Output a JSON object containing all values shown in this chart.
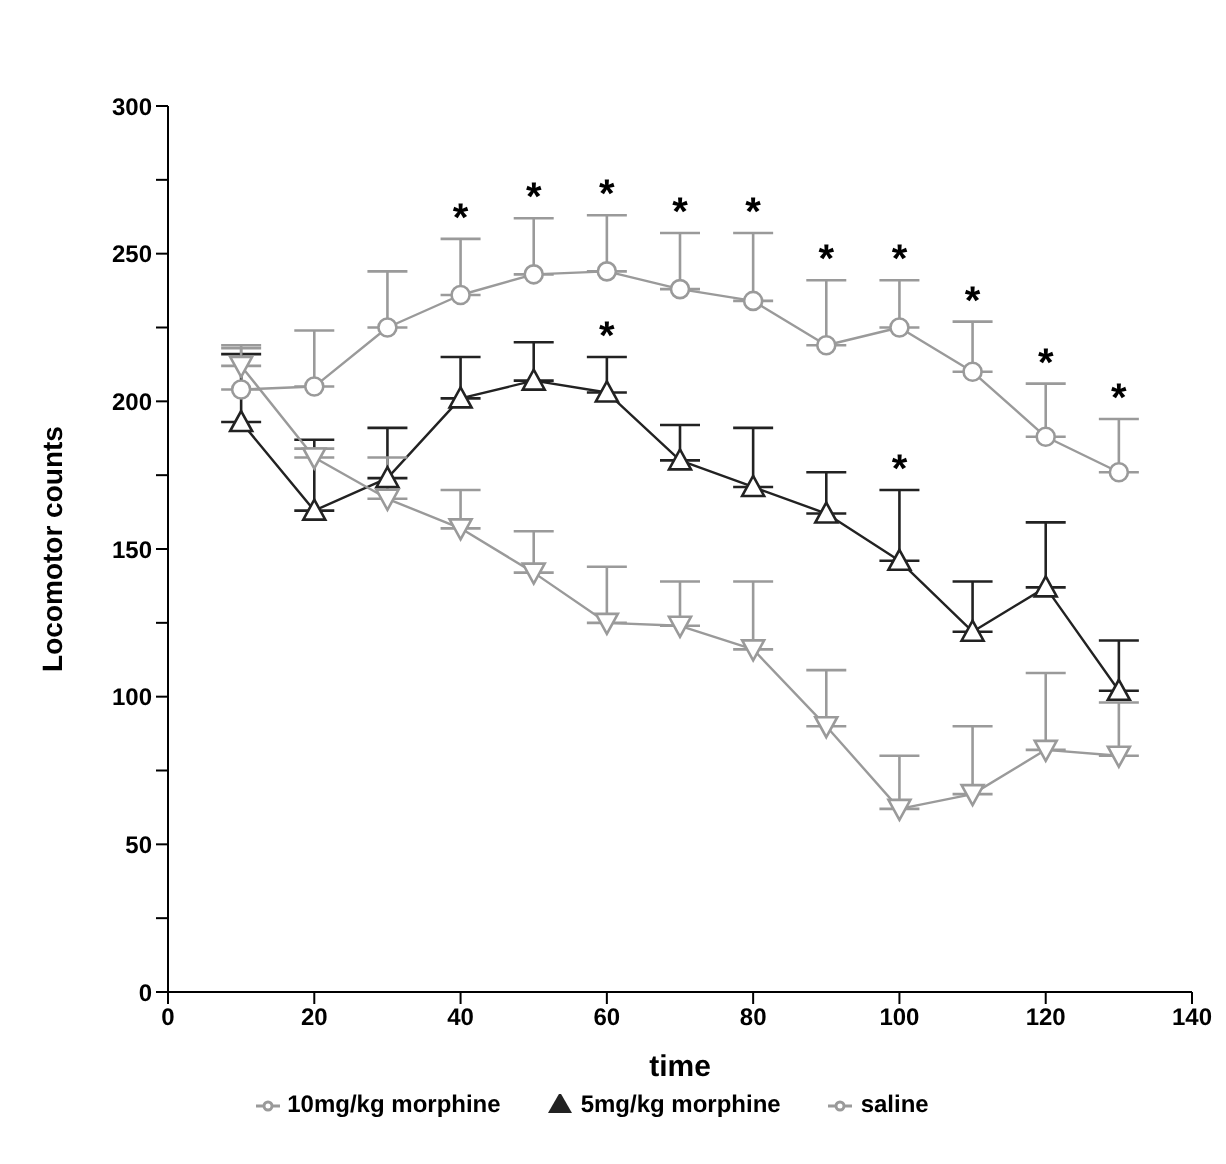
{
  "chart_data": {
    "type": "line",
    "xlabel": "time",
    "ylabel": "Locomotor counts",
    "x": [
      10,
      20,
      30,
      40,
      50,
      60,
      70,
      80,
      90,
      100,
      110,
      120,
      130
    ],
    "series": [
      {
        "name": "10mg/kg morphine",
        "color": "#9a9a9a",
        "marker": "circle",
        "values": [
          204,
          205,
          225,
          236,
          243,
          244,
          238,
          234,
          219,
          225,
          210,
          188,
          176
        ],
        "errors": [
          [
            204,
            219
          ],
          [
            205,
            224
          ],
          [
            225,
            244
          ],
          [
            236,
            255
          ],
          [
            243,
            262
          ],
          [
            244,
            263
          ],
          [
            238,
            257
          ],
          [
            234,
            257
          ],
          [
            219,
            241
          ],
          [
            225,
            241
          ],
          [
            210,
            227
          ],
          [
            188,
            206
          ],
          [
            176,
            194
          ]
        ]
      },
      {
        "name": "5mg/kg morphine",
        "color": "#222222",
        "marker": "triangle",
        "values": [
          193,
          163,
          174,
          201,
          207,
          203,
          180,
          171,
          162,
          146,
          122,
          137,
          102
        ],
        "errors": [
          [
            193,
            216
          ],
          [
            163,
            187
          ],
          [
            174,
            191
          ],
          [
            201,
            215
          ],
          [
            207,
            220
          ],
          [
            203,
            215
          ],
          [
            180,
            192
          ],
          [
            171,
            191
          ],
          [
            162,
            176
          ],
          [
            146,
            170
          ],
          [
            122,
            139
          ],
          [
            137,
            159
          ],
          [
            102,
            119
          ]
        ]
      },
      {
        "name": "saline",
        "color": "#9a9a9a",
        "marker": "triangle-down",
        "values": [
          212,
          181,
          167,
          157,
          142,
          125,
          124,
          116,
          90,
          62,
          67,
          82,
          80
        ],
        "errors": [
          [
            212,
            218
          ],
          [
            181,
            184
          ],
          [
            167,
            181
          ],
          [
            157,
            170
          ],
          [
            142,
            156
          ],
          [
            125,
            144
          ],
          [
            124,
            139
          ],
          [
            116,
            139
          ],
          [
            90,
            109
          ],
          [
            62,
            80
          ],
          [
            67,
            90
          ],
          [
            82,
            108
          ],
          [
            80,
            98
          ]
        ]
      }
    ],
    "xlim": [
      0,
      140
    ],
    "xticks": [
      0,
      20,
      40,
      60,
      80,
      100,
      120,
      140
    ],
    "ylim": [
      0,
      300
    ],
    "yticks": [
      0,
      {
        "value": 25,
        "label": null
      },
      50,
      {
        "value": 75,
        "label": null
      },
      100,
      {
        "value": 125,
        "label": null
      },
      150,
      {
        "value": 175,
        "label": null
      },
      200,
      {
        "value": 225,
        "label": null
      },
      250,
      {
        "value": 275,
        "label": null
      },
      300
    ],
    "legend": "bottom",
    "grid": false,
    "line_style": "solid",
    "annotations": [
      {
        "text": "*",
        "x": 40,
        "y": 255
      },
      {
        "text": "*",
        "x": 50,
        "y": 262
      },
      {
        "text": "*",
        "x": 60,
        "y": 263
      },
      {
        "text": "*",
        "x": 70,
        "y": 257
      },
      {
        "text": "*",
        "x": 80,
        "y": 257
      },
      {
        "text": "*",
        "x": 90,
        "y": 241
      },
      {
        "text": "*",
        "x": 100,
        "y": 241
      },
      {
        "text": "*",
        "x": 110,
        "y": 227
      },
      {
        "text": "*",
        "x": 120,
        "y": 206
      },
      {
        "text": "*",
        "x": 130,
        "y": 194
      },
      {
        "text": "*",
        "x": 60,
        "y": 215
      },
      {
        "text": "*",
        "x": 100,
        "y": 170
      }
    ]
  }
}
